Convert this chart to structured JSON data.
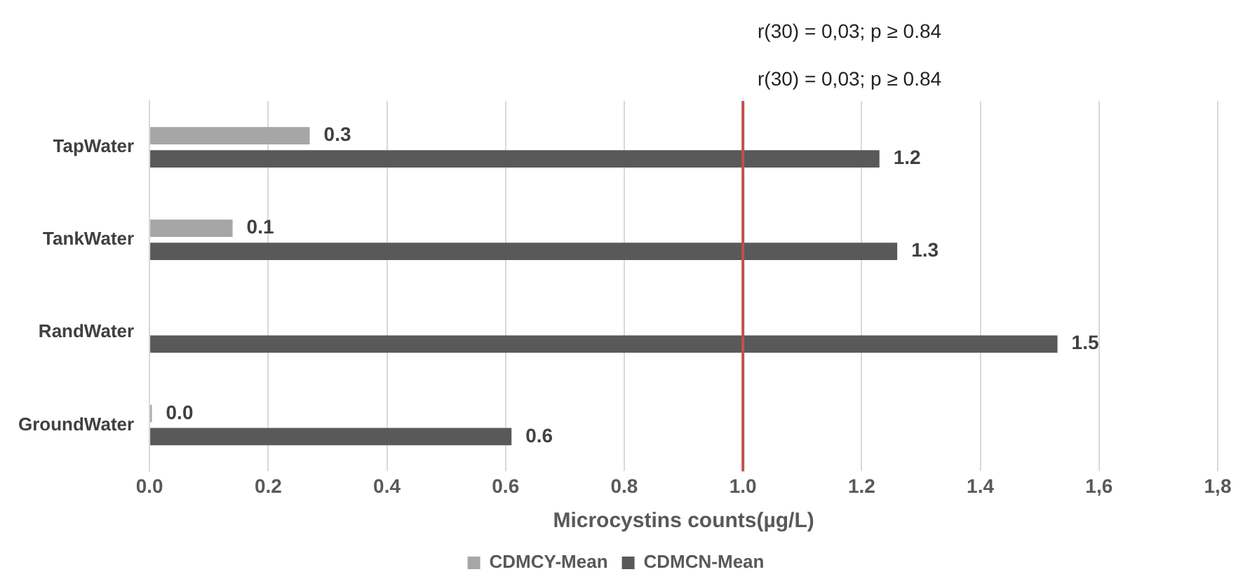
{
  "chart_data": {
    "type": "bar",
    "orientation": "horizontal",
    "xlabel": "Microcystins counts(µg/L)",
    "categories": [
      "TapWater",
      "TankWater",
      "RandWater",
      "GroundWater"
    ],
    "series": [
      {
        "name": "CDMCY-Mean",
        "color": "#a6a6a6",
        "values": [
          0.27,
          0.14,
          null,
          0.004
        ],
        "value_labels": [
          "0.3",
          "0.1",
          null,
          "0.0"
        ]
      },
      {
        "name": "CDMCN-Mean",
        "color": "#595959",
        "values": [
          1.23,
          1.26,
          1.53,
          0.61
        ],
        "value_labels": [
          "1.2",
          "1.3",
          "1.5",
          "0.6"
        ]
      }
    ],
    "xlim": [
      0,
      1.8
    ],
    "xticks": [
      {
        "value": 0,
        "label": "0.0"
      },
      {
        "value": 0.2,
        "label": "0.2"
      },
      {
        "value": 0.4,
        "label": "0.4"
      },
      {
        "value": 0.6,
        "label": "0.6"
      },
      {
        "value": 0.8,
        "label": "0.8"
      },
      {
        "value": 1,
        "label": "1.0"
      },
      {
        "value": 1.2,
        "label": "1.2"
      },
      {
        "value": 1.4,
        "label": "1.4"
      },
      {
        "value": 1.6,
        "label": "1,6"
      },
      {
        "value": 1.8,
        "label": "1,8"
      }
    ],
    "ref_lines": [
      {
        "axis": "x",
        "value": 1,
        "color": "#c0504d"
      }
    ],
    "annotations": [
      "r(30) = 0,03; p ≥ 0.84",
      "r(30) = 0,03; p ≥ 0.84"
    ],
    "grid": "x",
    "legend": "bottom"
  }
}
